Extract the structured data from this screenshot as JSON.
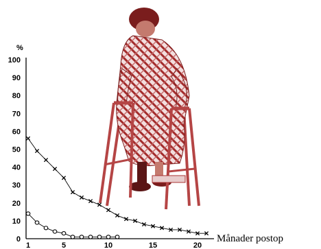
{
  "chart_data": {
    "type": "line",
    "y_unit_label": "%",
    "xlabel": "Månader postop",
    "xlim": [
      1,
      21
    ],
    "ylim": [
      0,
      100
    ],
    "x_ticks": [
      1,
      5,
      10,
      15,
      20
    ],
    "y_ticks": [
      0,
      10,
      20,
      30,
      40,
      50,
      60,
      70,
      80,
      90,
      100
    ],
    "grid": false,
    "legend": "none",
    "series": [
      {
        "marker": "x",
        "x": [
          1,
          2,
          3,
          4,
          5,
          6,
          7,
          8,
          9,
          10,
          11,
          12,
          13,
          14,
          15,
          16,
          17,
          18,
          19,
          20,
          21
        ],
        "values": [
          56,
          49,
          44,
          39,
          34,
          26,
          23,
          21,
          19,
          16,
          13,
          11,
          10,
          8,
          7,
          6,
          5,
          5,
          4,
          3,
          3
        ]
      },
      {
        "marker": "o",
        "x": [
          1,
          2,
          3,
          4,
          5,
          6,
          7,
          8,
          9,
          10,
          11
        ],
        "values": [
          14,
          9,
          6,
          4,
          3,
          1,
          1,
          1,
          1,
          1,
          1
        ]
      }
    ],
    "illustration": "elderly-woman-with-walking-frame",
    "colors": {
      "illustration": "#9b2a2a",
      "lines": "#000000"
    }
  }
}
